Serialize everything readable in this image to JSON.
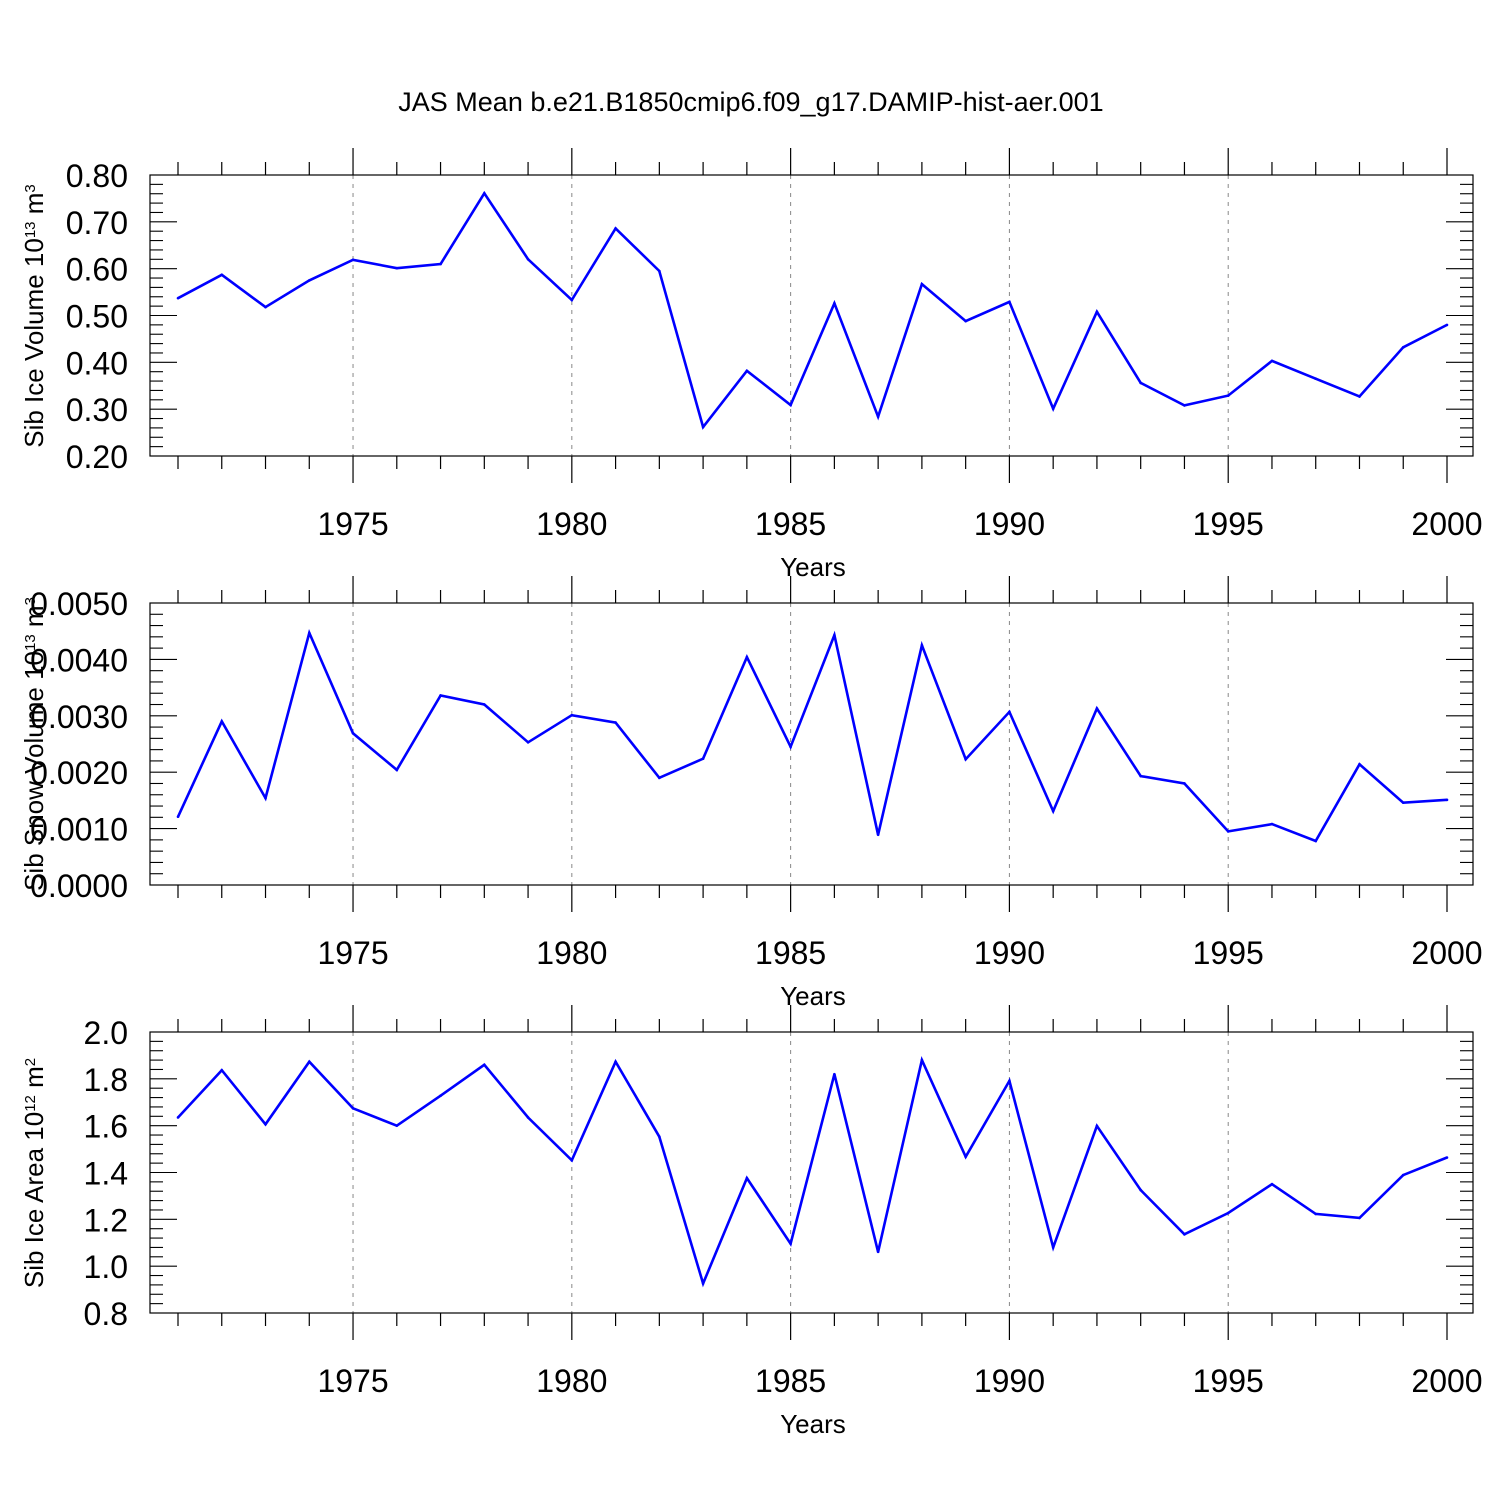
{
  "figure": {
    "title": "JAS Mean b.e21.B1850cmip6.f09_g17.DAMIP-hist-aer.001",
    "line_color": "#0000ff",
    "grid_color": "#888888"
  },
  "chart_data": [
    {
      "type": "line",
      "title": "",
      "xlabel": "Years",
      "ylabel": {
        "prefix": "Sib Ice Volume 10",
        "exp": "13",
        "unit": " m",
        "unit_exp": "3"
      },
      "xlim": [
        1971,
        2000
      ],
      "ylim": [
        0.2,
        0.8
      ],
      "x_ticks": [
        1975,
        1980,
        1985,
        1990,
        1995,
        2000
      ],
      "x_tick_labels": [
        "1975",
        "1980",
        "1985",
        "1990",
        "1995",
        "2000"
      ],
      "y_ticks": [
        0.2,
        0.3,
        0.4,
        0.5,
        0.6,
        0.7,
        0.8
      ],
      "y_tick_labels": [
        "0.20",
        "0.30",
        "0.40",
        "0.50",
        "0.60",
        "0.70",
        "0.80"
      ],
      "y_minor_step": 0.02,
      "grid": "vertical dashed at major x ticks",
      "x": [
        1971,
        1972,
        1973,
        1974,
        1975,
        1976,
        1977,
        1978,
        1979,
        1980,
        1981,
        1982,
        1983,
        1984,
        1985,
        1986,
        1987,
        1988,
        1989,
        1990,
        1991,
        1992,
        1993,
        1994,
        1995,
        1996,
        1997,
        1998,
        1999,
        2000
      ],
      "series": [
        {
          "name": "Sib Ice Volume",
          "values": [
            0.537,
            0.587,
            0.518,
            0.575,
            0.619,
            0.601,
            0.61,
            0.761,
            0.62,
            0.533,
            0.686,
            0.595,
            0.262,
            0.382,
            0.309,
            0.526,
            0.284,
            0.567,
            0.488,
            0.529,
            0.301,
            0.508,
            0.356,
            0.308,
            0.329,
            0.403,
            0.365,
            0.327,
            0.432,
            0.48
          ]
        }
      ]
    },
    {
      "type": "line",
      "title": "",
      "xlabel": "Years",
      "ylabel": {
        "prefix": "Sib Snow Volume 10",
        "exp": "13",
        "unit": " m",
        "unit_exp": "3"
      },
      "xlim": [
        1971,
        2000
      ],
      "ylim": [
        0.0,
        0.005
      ],
      "x_ticks": [
        1975,
        1980,
        1985,
        1990,
        1995,
        2000
      ],
      "x_tick_labels": [
        "1975",
        "1980",
        "1985",
        "1990",
        "1995",
        "2000"
      ],
      "y_ticks": [
        0.0,
        0.001,
        0.002,
        0.003,
        0.004,
        0.005
      ],
      "y_tick_labels": [
        "0.0000",
        "0.0010",
        "0.0020",
        "0.0030",
        "0.0040",
        "0.0050"
      ],
      "y_minor_step": 0.0002,
      "grid": "vertical dashed at major x ticks",
      "x": [
        1971,
        1972,
        1973,
        1974,
        1975,
        1976,
        1977,
        1978,
        1979,
        1980,
        1981,
        1982,
        1983,
        1984,
        1985,
        1986,
        1987,
        1988,
        1989,
        1990,
        1991,
        1992,
        1993,
        1994,
        1995,
        1996,
        1997,
        1998,
        1999,
        2000
      ],
      "series": [
        {
          "name": "Sib Snow Volume",
          "values": [
            0.00121,
            0.0029,
            0.00154,
            0.00447,
            0.00269,
            0.00204,
            0.00336,
            0.0032,
            0.00253,
            0.00301,
            0.00288,
            0.0019,
            0.00224,
            0.00404,
            0.00245,
            0.00443,
            0.00089,
            0.00425,
            0.00223,
            0.00307,
            0.00131,
            0.00313,
            0.00193,
            0.0018,
            0.00095,
            0.00108,
            0.00078,
            0.00214,
            0.00146,
            0.00151
          ]
        }
      ]
    },
    {
      "type": "line",
      "title": "",
      "xlabel": "Years",
      "ylabel": {
        "prefix": "Sib Ice Area 10",
        "exp": "12",
        "unit": " m",
        "unit_exp": "2"
      },
      "xlim": [
        1971,
        2000
      ],
      "ylim": [
        0.8,
        2.0
      ],
      "x_ticks": [
        1975,
        1980,
        1985,
        1990,
        1995,
        2000
      ],
      "x_tick_labels": [
        "1975",
        "1980",
        "1985",
        "1990",
        "1995",
        "2000"
      ],
      "y_ticks": [
        0.8,
        1.0,
        1.2,
        1.4,
        1.6,
        1.8,
        2.0
      ],
      "y_tick_labels": [
        "0.8",
        "1.0",
        "1.2",
        "1.4",
        "1.6",
        "1.8",
        "2.0"
      ],
      "y_minor_step": 0.04,
      "grid": "vertical dashed at major x ticks",
      "x": [
        1971,
        1972,
        1973,
        1974,
        1975,
        1976,
        1977,
        1978,
        1979,
        1980,
        1981,
        1982,
        1983,
        1984,
        1985,
        1986,
        1987,
        1988,
        1989,
        1990,
        1991,
        1992,
        1993,
        1994,
        1995,
        1996,
        1997,
        1998,
        1999,
        2000
      ],
      "series": [
        {
          "name": "Sib Ice Area",
          "values": [
            1.635,
            1.837,
            1.606,
            1.873,
            1.674,
            1.6,
            1.728,
            1.86,
            1.635,
            1.452,
            1.873,
            1.553,
            0.926,
            1.376,
            1.096,
            1.82,
            1.061,
            1.88,
            1.467,
            1.791,
            1.08,
            1.599,
            1.325,
            1.136,
            1.227,
            1.35,
            1.223,
            1.206,
            1.389,
            1.464
          ]
        }
      ]
    }
  ]
}
